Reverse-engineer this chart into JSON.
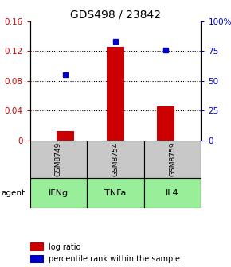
{
  "title": "GDS498 / 23842",
  "samples": [
    "GSM8749",
    "GSM8754",
    "GSM8759"
  ],
  "agents": [
    "IFNg",
    "TNFa",
    "IL4"
  ],
  "log_ratio": [
    0.012,
    0.126,
    0.046
  ],
  "percentile_rank": [
    55,
    83,
    76
  ],
  "left_ylim": [
    0,
    0.16
  ],
  "right_ylim": [
    0,
    100
  ],
  "left_yticks": [
    0,
    0.04,
    0.08,
    0.12,
    0.16
  ],
  "right_yticks": [
    0,
    25,
    50,
    75,
    100
  ],
  "right_yticklabels": [
    "0",
    "25",
    "50",
    "75",
    "100%"
  ],
  "bar_color": "#cc0000",
  "dot_color": "#0000cc",
  "sample_box_color": "#c8c8c8",
  "agent_box_color": "#99ee99",
  "bar_width": 0.35,
  "title_fontsize": 10,
  "tick_fontsize": 7.5,
  "agent_label": "agent",
  "legend_bar_label": "log ratio",
  "legend_dot_label": "percentile rank within the sample"
}
